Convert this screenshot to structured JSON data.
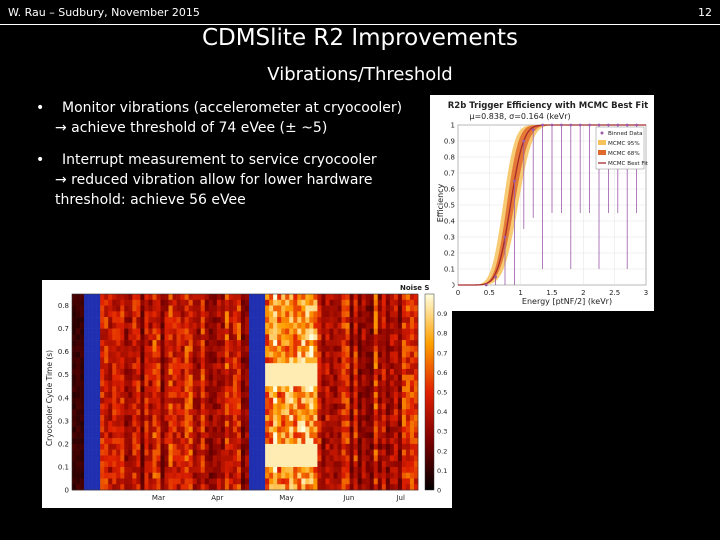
{
  "header": {
    "author_event": "W. Rau – Sudbury, November 2015",
    "page_number": "12"
  },
  "slide": {
    "title": "CDMSlite R2 Improvements",
    "subtitle": "Vibrations/Threshold"
  },
  "bullets": [
    {
      "line1": "Monitor vibrations  (accelerometer at cryocooler)",
      "line2": "→ achieve threshold of 74 eVee (± ~5)"
    },
    {
      "line1": "Interrupt measurement to service cryocooler",
      "line2": "→ reduced vibration allow for lower hardware",
      "line3": "threshold: achieve 56 eVee"
    }
  ],
  "chart_data": [
    {
      "type": "line",
      "title": "R2b Trigger Efficiency with MCMC Best Fit",
      "subtitle": "μ=0.838, σ=0.164 (keVr)",
      "xlabel": "Energy [ptNF/2] (keVr)",
      "ylabel": "Efficiency",
      "xlim": [
        0,
        3
      ],
      "ylim": [
        0,
        1
      ],
      "xticks": [
        "0",
        "0.5",
        "1",
        "1.5",
        "2",
        "2.5",
        "3"
      ],
      "yticks": [
        "0",
        "0.1",
        "0.2",
        "0.3",
        "0.4",
        "0.5",
        "0.6",
        "0.7",
        "0.8",
        "0.9",
        "1"
      ],
      "legend": [
        "Binned Data",
        "MCMC 95%",
        "MCMC 68%",
        "MCMC Best Fit"
      ],
      "legend_position": "top-right",
      "fit": {
        "mu": 0.838,
        "sigma": 0.164
      },
      "binned_data": {
        "x": [
          0.45,
          0.6,
          0.75,
          0.9,
          1.05,
          1.2,
          1.35,
          1.5,
          1.65,
          1.8,
          1.95,
          2.1,
          2.25,
          2.4,
          2.55,
          2.7,
          2.85
        ],
        "y": [
          0.0,
          0.05,
          0.3,
          0.65,
          0.9,
          0.97,
          1.0,
          1.0,
          1.0,
          1.0,
          1.0,
          1.0,
          1.0,
          1.0,
          1.0,
          1.0,
          1.0
        ]
      },
      "colors": {
        "fit": "#a52a2a",
        "band95": "#f6c25c",
        "band68": "#e06a2c",
        "data": "#9c5aa8"
      }
    },
    {
      "type": "heatmap",
      "title": "Noise S",
      "ylabel": "Cryocooler Cycle Time (s)",
      "ylim": [
        0,
        0.85
      ],
      "yticks": [
        "0",
        "0.1",
        "0.2",
        "0.3",
        "0.4",
        "0.5",
        "0.6",
        "0.7",
        "0.8"
      ],
      "xticks": [
        "Mar",
        "Apr",
        "May",
        "Jun",
        "Jul"
      ],
      "colorbar_ticks": [
        "0",
        "0.1",
        "0.2",
        "0.3",
        "0.4",
        "0.5",
        "0.6",
        "0.7",
        "0.8",
        "0.9"
      ],
      "colorbar_range": [
        0,
        1
      ]
    }
  ]
}
